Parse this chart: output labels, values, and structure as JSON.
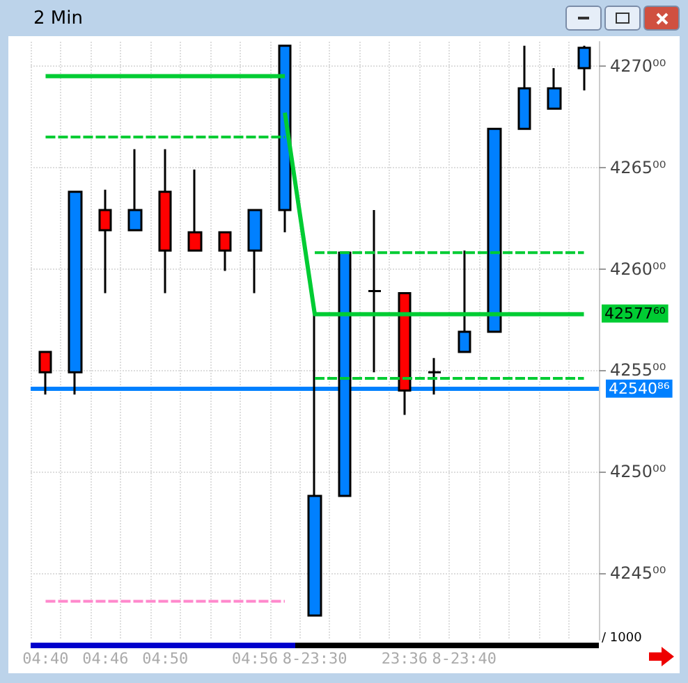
{
  "chart_data": {
    "type": "candlestick",
    "title": "2 Min",
    "categories": [
      "04:40",
      null,
      "04:46",
      null,
      "04:50",
      null,
      null,
      "04:56",
      null,
      "8-23:30",
      null,
      null,
      "23:36",
      null,
      "8-23:40",
      null,
      null,
      null,
      null
    ],
    "ohlc": [
      [
        4255.9,
        4255.9,
        4253.8,
        4254.9
      ],
      [
        4254.9,
        4263.8,
        4253.8,
        4263.8
      ],
      [
        4262.9,
        4263.9,
        4258.8,
        4261.9
      ],
      [
        4261.9,
        4265.9,
        4261.9,
        4262.9
      ],
      [
        4263.8,
        4265.9,
        4258.8,
        4260.9
      ],
      [
        4261.8,
        4264.9,
        4260.9,
        4260.9
      ],
      [
        4261.8,
        4261.8,
        4259.9,
        4260.9
      ],
      [
        4260.9,
        4262.9,
        4258.8,
        4262.9
      ],
      [
        4262.9,
        4271,
        4261.8,
        4271
      ],
      [
        4242.9,
        4257.9,
        4242.9,
        4248.8
      ],
      [
        4248.8,
        4260.8,
        4248.8,
        4260.8
      ],
      [
        4258.9,
        4262.9,
        4254.9,
        4258.9
      ],
      [
        4258.8,
        4258.8,
        4252.8,
        4254
      ],
      [
        4254.9,
        4255.6,
        4253.8,
        4254.9
      ],
      [
        4255.9,
        4260.9,
        4255.9,
        4256.9
      ],
      [
        4256.9,
        4266.9,
        4256.9,
        4266.9
      ],
      [
        4266.9,
        4271,
        4266.9,
        4268.9
      ],
      [
        4267.9,
        4269.9,
        4267.9,
        4268.9
      ],
      [
        4269.9,
        4271,
        4268.8,
        4270.9
      ]
    ],
    "colors": [
      "#ff0000",
      "#0080ff",
      "#ff0000",
      "#0080ff",
      "#ff0000",
      "#ff0000",
      "#ff0000",
      "#0080ff",
      "#0080ff",
      "#0080ff",
      "#0080ff",
      "#000000",
      "#ff0000",
      "#000000",
      "#0080ff",
      "#0080ff",
      "#0080ff",
      "#0080ff",
      "#0080ff"
    ],
    "series": [
      {
        "type": "line",
        "color": "#00cc33",
        "line_style": "solid",
        "values": [
          4269.5,
          4269.5,
          4269.5,
          4269.5,
          4269.5,
          4269.5,
          4269.5,
          4269.5,
          4269.5,
          null,
          null,
          null,
          null,
          null,
          null,
          null,
          null,
          null,
          null
        ]
      },
      {
        "type": "line",
        "color": "#00cc33",
        "line_style": "dashed",
        "values": [
          4266.5,
          4266.5,
          4266.5,
          4266.5,
          4266.5,
          4266.5,
          4266.5,
          4266.5,
          4266.5,
          null,
          null,
          null,
          null,
          null,
          null,
          null,
          null,
          null,
          null
        ]
      },
      {
        "type": "line",
        "name": "42577⁶⁰",
        "color": "#00cc33",
        "line_style": "solid",
        "values": [
          null,
          null,
          null,
          null,
          null,
          null,
          null,
          null,
          4267.7,
          4257.76,
          4257.76,
          4257.76,
          4257.76,
          4257.76,
          4257.76,
          4257.76,
          4257.76,
          4257.76,
          4257.76
        ]
      },
      {
        "type": "line",
        "color": "#00cc33",
        "line_style": "dashed",
        "values": [
          null,
          null,
          null,
          null,
          null,
          null,
          null,
          null,
          null,
          4260.8,
          4260.8,
          4260.8,
          4260.8,
          4260.8,
          4260.8,
          4260.8,
          4260.8,
          4260.8,
          4260.8
        ]
      },
      {
        "type": "line",
        "color": "#00cc33",
        "line_style": "dashed",
        "values": [
          null,
          null,
          null,
          null,
          null,
          null,
          null,
          null,
          null,
          4254.6,
          4254.6,
          4254.6,
          4254.6,
          4254.6,
          4254.6,
          4254.6,
          4254.6,
          4254.6,
          4254.6
        ]
      },
      {
        "type": "line",
        "color": "#ff88cc",
        "line_style": "dashed",
        "values": [
          4243.6,
          4243.6,
          4243.6,
          4243.6,
          4243.6,
          4243.6,
          4243.6,
          4243.6,
          4243.6,
          null,
          null,
          null,
          null,
          null,
          null,
          null,
          null,
          null,
          null
        ]
      }
    ],
    "ref_lines": [
      {
        "axis": "y",
        "value": 4254.086,
        "label": "42540⁸⁶",
        "color": "#0080ff"
      }
    ],
    "annotations": [
      "/ 1000"
    ],
    "ylim": [
      4241.7,
      4271.2
    ],
    "yticks": [
      {
        "value": 4245,
        "label": "4245⁰⁰"
      },
      {
        "value": 4250,
        "label": "4250⁰⁰"
      },
      {
        "value": 4255,
        "label": "4255⁰⁰"
      },
      {
        "value": 4260,
        "label": "4260⁰⁰"
      },
      {
        "value": 4265,
        "label": "4265⁰⁰"
      },
      {
        "value": 4270,
        "label": "4270⁰⁰"
      }
    ],
    "grid": true,
    "marker": "none"
  }
}
